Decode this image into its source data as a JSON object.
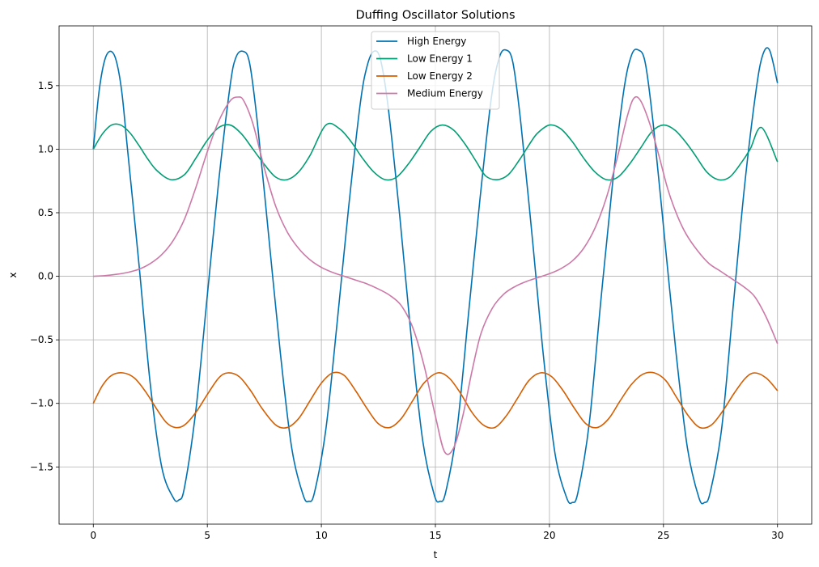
{
  "chart_data": {
    "type": "line",
    "title": "Duffing Oscillator Solutions",
    "xlabel": "t",
    "ylabel": "x",
    "xlim": [
      -1.5,
      31.5
    ],
    "ylim": [
      -1.95,
      1.97
    ],
    "xticks": [
      0,
      5,
      10,
      15,
      20,
      25,
      30
    ],
    "xtick_labels": [
      "0",
      "5",
      "10",
      "15",
      "20",
      "25",
      "30"
    ],
    "yticks": [
      -1.5,
      -1.0,
      -0.5,
      0.0,
      0.5,
      1.0,
      1.5
    ],
    "ytick_labels": [
      "−1.5",
      "−1.0",
      "−0.5",
      "0.0",
      "0.5",
      "1.0",
      "1.5"
    ],
    "grid": true,
    "legend_position": "upper-center",
    "series": [
      {
        "name": "High Energy",
        "color": "#0072b2",
        "x": [
          0,
          0.25,
          0.5,
          0.75,
          1.0,
          1.25,
          1.5,
          2.0,
          2.5,
          3.0,
          3.5,
          3.75,
          4.0,
          4.5,
          5.0,
          5.5,
          6.0,
          6.25,
          6.55,
          6.85,
          7.2,
          7.7,
          8.2,
          8.7,
          9.2,
          9.45,
          9.7,
          10.2,
          10.7,
          11.2,
          11.7,
          12.0,
          12.3,
          12.6,
          12.95,
          13.45,
          13.95,
          14.45,
          14.95,
          15.2,
          15.45,
          15.95,
          16.45,
          16.95,
          17.45,
          17.8,
          18.1,
          18.4,
          18.75,
          19.25,
          19.75,
          20.25,
          20.75,
          21.0,
          21.25,
          21.75,
          22.25,
          22.75,
          23.25,
          23.6,
          23.9,
          24.2,
          24.55,
          25.05,
          25.55,
          26.05,
          26.55,
          26.8,
          27.05,
          27.55,
          28.05,
          28.55,
          29.05,
          29.35,
          29.65,
          30.0
        ],
        "y": [
          1.0,
          1.45,
          1.7,
          1.77,
          1.7,
          1.45,
          1.0,
          0.1,
          -0.85,
          -1.5,
          -1.74,
          -1.76,
          -1.66,
          -1.05,
          -0.15,
          0.75,
          1.5,
          1.72,
          1.77,
          1.68,
          1.2,
          0.3,
          -0.6,
          -1.35,
          -1.72,
          -1.77,
          -1.7,
          -1.2,
          -0.35,
          0.55,
          1.35,
          1.65,
          1.77,
          1.7,
          1.3,
          0.45,
          -0.5,
          -1.3,
          -1.72,
          -1.77,
          -1.7,
          -1.2,
          -0.3,
          0.6,
          1.4,
          1.72,
          1.78,
          1.68,
          1.2,
          0.3,
          -0.65,
          -1.4,
          -1.74,
          -1.78,
          -1.7,
          -1.15,
          -0.2,
          0.7,
          1.45,
          1.74,
          1.78,
          1.68,
          1.2,
          0.3,
          -0.6,
          -1.35,
          -1.74,
          -1.78,
          -1.7,
          -1.2,
          -0.25,
          0.7,
          1.45,
          1.74,
          1.78,
          1.52
        ]
      },
      {
        "name": "Low Energy 1",
        "color": "#009e73",
        "x": [
          0,
          0.4,
          0.8,
          1.2,
          1.6,
          2.0,
          2.4,
          2.8,
          3.4,
          4.0,
          4.5,
          5.0,
          5.5,
          6.0,
          6.5,
          7.0,
          7.5,
          8.0,
          8.5,
          9.0,
          9.5,
          10.2,
          10.8,
          11.3,
          11.8,
          12.3,
          12.8,
          13.3,
          13.8,
          14.3,
          14.8,
          15.3,
          15.8,
          16.3,
          16.8,
          17.2,
          17.7,
          18.2,
          18.7,
          19.2,
          19.5,
          20.0,
          20.5,
          21.0,
          21.5,
          22.0,
          22.5,
          23.0,
          23.5,
          24.0,
          24.5,
          25.0,
          25.5,
          26.0,
          26.4,
          26.9,
          27.4,
          27.9,
          28.4,
          28.8,
          29.3,
          30.0
        ],
        "y": [
          1.0,
          1.12,
          1.19,
          1.19,
          1.13,
          1.03,
          0.92,
          0.83,
          0.76,
          0.8,
          0.93,
          1.07,
          1.17,
          1.19,
          1.12,
          1.0,
          0.88,
          0.78,
          0.76,
          0.82,
          0.95,
          1.19,
          1.16,
          1.06,
          0.93,
          0.82,
          0.76,
          0.78,
          0.88,
          1.01,
          1.14,
          1.19,
          1.15,
          1.04,
          0.9,
          0.79,
          0.76,
          0.8,
          0.92,
          1.06,
          1.13,
          1.19,
          1.16,
          1.06,
          0.93,
          0.82,
          0.76,
          0.78,
          0.88,
          1.01,
          1.14,
          1.19,
          1.15,
          1.05,
          0.95,
          0.82,
          0.76,
          0.78,
          0.89,
          1.0,
          1.17,
          0.9
        ]
      },
      {
        "name": "Low Energy 2",
        "color": "#d55e00",
        "x": [
          0,
          0.4,
          0.8,
          1.3,
          1.8,
          2.3,
          2.8,
          3.2,
          3.6,
          4.0,
          4.5,
          5.0,
          5.5,
          5.9,
          6.4,
          6.9,
          7.4,
          8.0,
          8.5,
          9.0,
          9.5,
          10.0,
          10.5,
          11.0,
          11.5,
          12.0,
          12.5,
          13.0,
          13.5,
          14.0,
          14.5,
          15.1,
          15.6,
          16.1,
          16.6,
          17.1,
          17.6,
          18.1,
          18.6,
          19.1,
          19.6,
          20.1,
          20.6,
          21.1,
          21.6,
          22.1,
          22.6,
          23.1,
          23.6,
          24.1,
          24.6,
          25.1,
          25.6,
          26.1,
          26.6,
          27.1,
          27.6,
          28.1,
          28.6,
          29.0,
          29.5,
          30.0
        ],
        "y": [
          -1.0,
          -0.86,
          -0.78,
          -0.76,
          -0.8,
          -0.91,
          -1.05,
          -1.15,
          -1.19,
          -1.17,
          -1.07,
          -0.93,
          -0.8,
          -0.76,
          -0.79,
          -0.9,
          -1.04,
          -1.17,
          -1.19,
          -1.12,
          -0.98,
          -0.84,
          -0.76,
          -0.78,
          -0.9,
          -1.04,
          -1.16,
          -1.19,
          -1.12,
          -0.98,
          -0.84,
          -0.76,
          -0.8,
          -0.92,
          -1.07,
          -1.17,
          -1.19,
          -1.1,
          -0.96,
          -0.82,
          -0.76,
          -0.79,
          -0.9,
          -1.04,
          -1.16,
          -1.19,
          -1.12,
          -0.98,
          -0.85,
          -0.77,
          -0.76,
          -0.82,
          -0.96,
          -1.1,
          -1.19,
          -1.17,
          -1.06,
          -0.92,
          -0.8,
          -0.76,
          -0.8,
          -0.9
        ]
      },
      {
        "name": "Medium Energy",
        "color": "#cc79a7",
        "x": [
          0,
          0.5,
          1.0,
          1.5,
          2.0,
          2.5,
          3.0,
          3.5,
          4.0,
          4.5,
          5.0,
          5.5,
          6.0,
          6.35,
          6.6,
          7.0,
          7.5,
          8.0,
          8.5,
          9.0,
          9.5,
          10.0,
          10.5,
          11.0,
          11.5,
          12.0,
          12.5,
          13.0,
          13.5,
          14.0,
          14.5,
          15.0,
          15.4,
          15.8,
          16.2,
          16.6,
          17.0,
          17.5,
          18.0,
          18.5,
          19.0,
          19.5,
          20.0,
          20.5,
          21.0,
          21.5,
          22.0,
          22.5,
          23.0,
          23.4,
          23.7,
          24.0,
          24.4,
          24.8,
          25.2,
          25.6,
          26.0,
          26.5,
          27.0,
          27.5,
          28.0,
          28.5,
          29.0,
          29.5,
          30.0
        ],
        "y": [
          0.0,
          0.005,
          0.015,
          0.03,
          0.055,
          0.1,
          0.17,
          0.28,
          0.45,
          0.7,
          0.98,
          1.22,
          1.38,
          1.41,
          1.38,
          1.2,
          0.85,
          0.55,
          0.35,
          0.22,
          0.13,
          0.07,
          0.03,
          0.0,
          -0.03,
          -0.06,
          -0.1,
          -0.15,
          -0.23,
          -0.4,
          -0.7,
          -1.1,
          -1.38,
          -1.35,
          -1.1,
          -0.75,
          -0.45,
          -0.25,
          -0.14,
          -0.08,
          -0.04,
          -0.01,
          0.02,
          0.06,
          0.12,
          0.22,
          0.38,
          0.62,
          0.95,
          1.25,
          1.4,
          1.38,
          1.2,
          0.95,
          0.68,
          0.48,
          0.33,
          0.2,
          0.1,
          0.04,
          -0.02,
          -0.08,
          -0.16,
          -0.32,
          -0.53
        ]
      }
    ]
  }
}
